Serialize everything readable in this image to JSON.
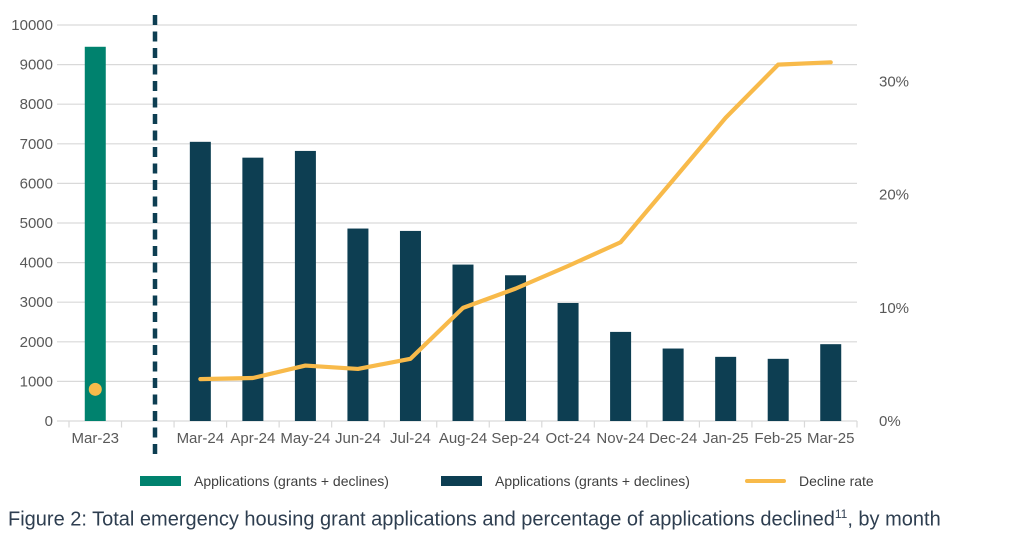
{
  "figure": {
    "caption_prefix": "Figure 2: Total emergency housing grant applications and percentage of applications declined",
    "caption_superscript": "11",
    "caption_suffix": ", by month"
  },
  "legend": [
    {
      "label": "Applications (grants + declines)",
      "swatch": "rect",
      "color": "#00826E"
    },
    {
      "label": "Applications (grants + declines)",
      "swatch": "rect",
      "color": "#0D3E52"
    },
    {
      "label": "Decline rate",
      "swatch": "line",
      "color": "#F8BA4A"
    }
  ],
  "chart_data": {
    "type": "bar+line",
    "categories": [
      "Mar-23",
      "Mar-24",
      "Apr-24",
      "May-24",
      "Jun-24",
      "Jul-24",
      "Aug-24",
      "Sep-24",
      "Oct-24",
      "Nov-24",
      "Dec-24",
      "Jan-25",
      "Feb-25",
      "Mar-25"
    ],
    "series": [
      {
        "name": "Applications (grants + declines)",
        "type": "bar",
        "axis": "left",
        "color": "#00826E",
        "values": [
          9450,
          null,
          null,
          null,
          null,
          null,
          null,
          null,
          null,
          null,
          null,
          null,
          null,
          null
        ]
      },
      {
        "name": "Applications (grants + declines)",
        "type": "bar",
        "axis": "left",
        "color": "#0D3E52",
        "values": [
          null,
          7050,
          6650,
          6820,
          4860,
          4800,
          3950,
          3680,
          2980,
          2250,
          1830,
          1620,
          1570,
          1940
        ]
      },
      {
        "name": "Decline rate",
        "type": "line",
        "axis": "right",
        "color": "#F8BA4A",
        "marker_only_first": true,
        "values": [
          2.8,
          3.7,
          3.8,
          4.9,
          4.6,
          5.5,
          10.0,
          11.7,
          13.7,
          15.8,
          21.3,
          26.8,
          31.5,
          31.7
        ]
      }
    ],
    "left_axis": {
      "min": 0,
      "max": 10000,
      "step": 1000,
      "tick_labels": [
        "0",
        "1000",
        "2000",
        "3000",
        "4000",
        "5000",
        "6000",
        "7000",
        "8000",
        "9000",
        "10000"
      ]
    },
    "right_axis": {
      "min": 0,
      "max": 35,
      "labels": [
        "0%",
        "10%",
        "20%",
        "30%"
      ],
      "label_values": [
        0,
        10,
        20,
        30
      ]
    },
    "separator": {
      "type": "dashed-vertical-line",
      "after_category": "Mar-23",
      "color": "#0D3E52"
    },
    "grid": true,
    "grid_color": "#D9D9D9",
    "axis_text_color": "#595959",
    "legend_position": "bottom",
    "gap_after_index": 0
  }
}
